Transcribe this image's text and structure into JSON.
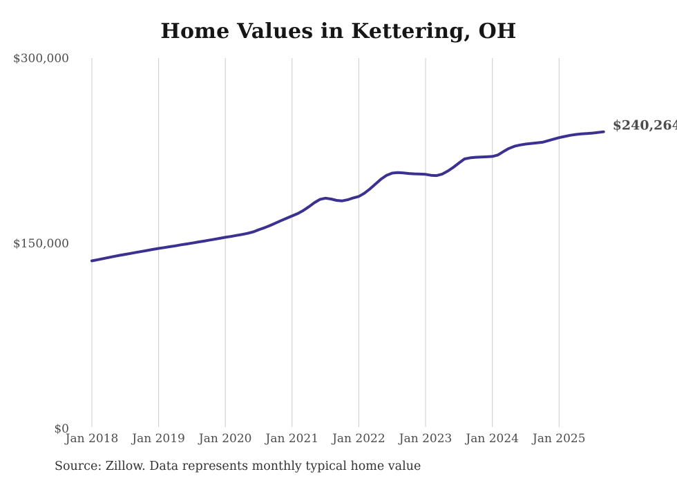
{
  "header": {
    "title": "Home Values in Kettering, OH"
  },
  "footer": {
    "source": "Source: Zillow. Data represents monthly typical home value"
  },
  "colors": {
    "line": "#3a3191",
    "grid": "#cbcbcb",
    "axis_text": "#4c4c4c",
    "title_text": "#161616",
    "source_text": "#333333"
  },
  "chart_data": {
    "type": "line",
    "title": "Home Values in Kettering, OH",
    "series_name": "Monthly typical home value (Zillow)",
    "unit": "USD",
    "frequency": "monthly",
    "x_start": "Jan 2018",
    "x_end": "Sep 2025",
    "x_tick_labels": [
      "Jan 2018",
      "Jan 2019",
      "Jan 2020",
      "Jan 2021",
      "Jan 2022",
      "Jan 2023",
      "Jan 2024",
      "Jan 2025"
    ],
    "y_ticks": [
      {
        "label": "$0",
        "value": 0
      },
      {
        "label": "$150,000",
        "value": 150000
      },
      {
        "label": "$300,000",
        "value": 300000
      }
    ],
    "ylim": [
      0,
      300000
    ],
    "grid": "vertical-only",
    "legend": "none",
    "end_label": "$240,264",
    "latest_value": 240264,
    "values": [
      135700,
      136600,
      137500,
      138400,
      139300,
      140200,
      141000,
      141800,
      142600,
      143400,
      144200,
      145000,
      145800,
      146500,
      147200,
      147900,
      148700,
      149400,
      150100,
      150900,
      151600,
      152400,
      153200,
      154000,
      154800,
      155500,
      156300,
      157100,
      158000,
      159200,
      160900,
      162500,
      164300,
      166300,
      168300,
      170200,
      172100,
      174000,
      176500,
      179500,
      182800,
      185500,
      186500,
      185800,
      184700,
      184300,
      185200,
      186700,
      187900,
      190500,
      194000,
      198000,
      202000,
      205000,
      206800,
      207200,
      206900,
      206500,
      206200,
      206000,
      205800,
      205000,
      204800,
      206000,
      208500,
      211500,
      215000,
      218300,
      219200,
      219600,
      219800,
      220000,
      220300,
      221500,
      224300,
      226800,
      228600,
      229600,
      230300,
      230800,
      231300,
      231800,
      233000,
      234300,
      235500,
      236500,
      237400,
      238100,
      238600,
      238900,
      239200,
      239700,
      240264
    ]
  }
}
